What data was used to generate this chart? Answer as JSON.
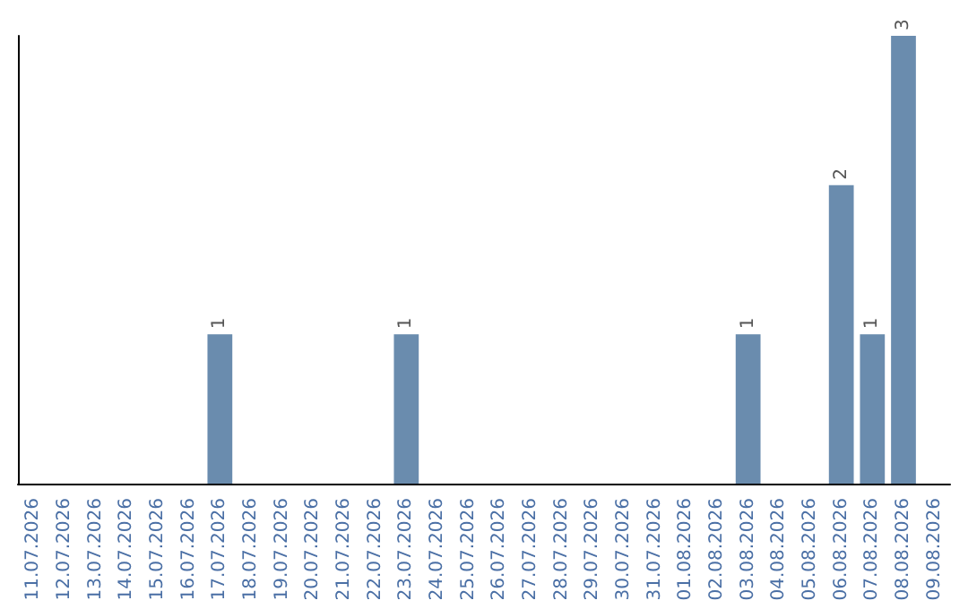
{
  "chart_data": {
    "type": "bar",
    "categories": [
      "11.07.2026",
      "12.07.2026",
      "13.07.2026",
      "14.07.2026",
      "15.07.2026",
      "16.07.2026",
      "17.07.2026",
      "18.07.2026",
      "19.07.2026",
      "20.07.2026",
      "21.07.2026",
      "22.07.2026",
      "23.07.2026",
      "24.07.2026",
      "25.07.2026",
      "26.07.2026",
      "27.07.2026",
      "28.07.2026",
      "29.07.2026",
      "30.07.2026",
      "31.07.2026",
      "01.08.2026",
      "02.08.2026",
      "03.08.2026",
      "04.08.2026",
      "05.08.2026",
      "06.08.2026",
      "07.08.2026",
      "08.08.2026",
      "09.08.2026"
    ],
    "values": [
      0,
      0,
      0,
      0,
      0,
      0,
      1,
      0,
      0,
      0,
      0,
      0,
      1,
      0,
      0,
      0,
      0,
      0,
      0,
      0,
      0,
      0,
      0,
      1,
      0,
      0,
      2,
      1,
      3,
      0
    ],
    "value_labels": [
      null,
      null,
      null,
      null,
      null,
      null,
      "1",
      null,
      null,
      null,
      null,
      null,
      "1",
      null,
      null,
      null,
      null,
      null,
      null,
      null,
      null,
      null,
      null,
      "1",
      null,
      null,
      "2",
      "1",
      "3",
      null
    ],
    "color": "#6a8cae",
    "tick_labels": "x",
    "grid": false
  }
}
